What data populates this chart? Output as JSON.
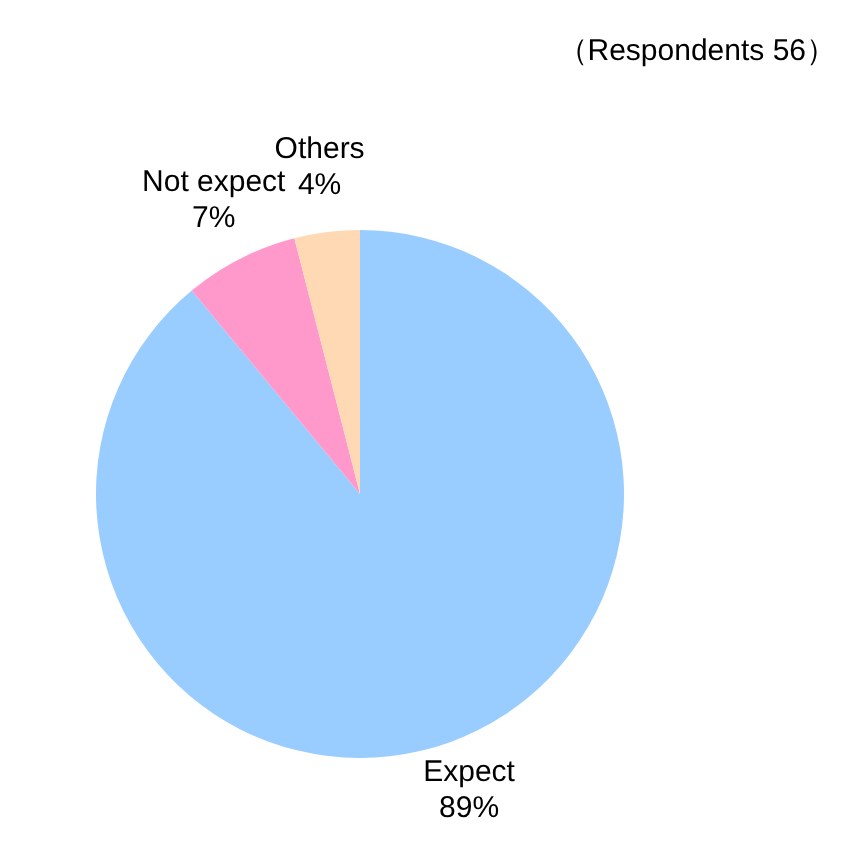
{
  "chart_data": {
    "type": "pie",
    "categories": [
      "Expect",
      "Not expect",
      "Others"
    ],
    "values": [
      89,
      7,
      4
    ],
    "colors": [
      "#99ccff",
      "#ff99cc",
      "#ffd9b3"
    ],
    "value_labels": [
      "89%",
      "7%",
      "4%"
    ],
    "annotations": [
      "（Respondents 56）"
    ]
  }
}
